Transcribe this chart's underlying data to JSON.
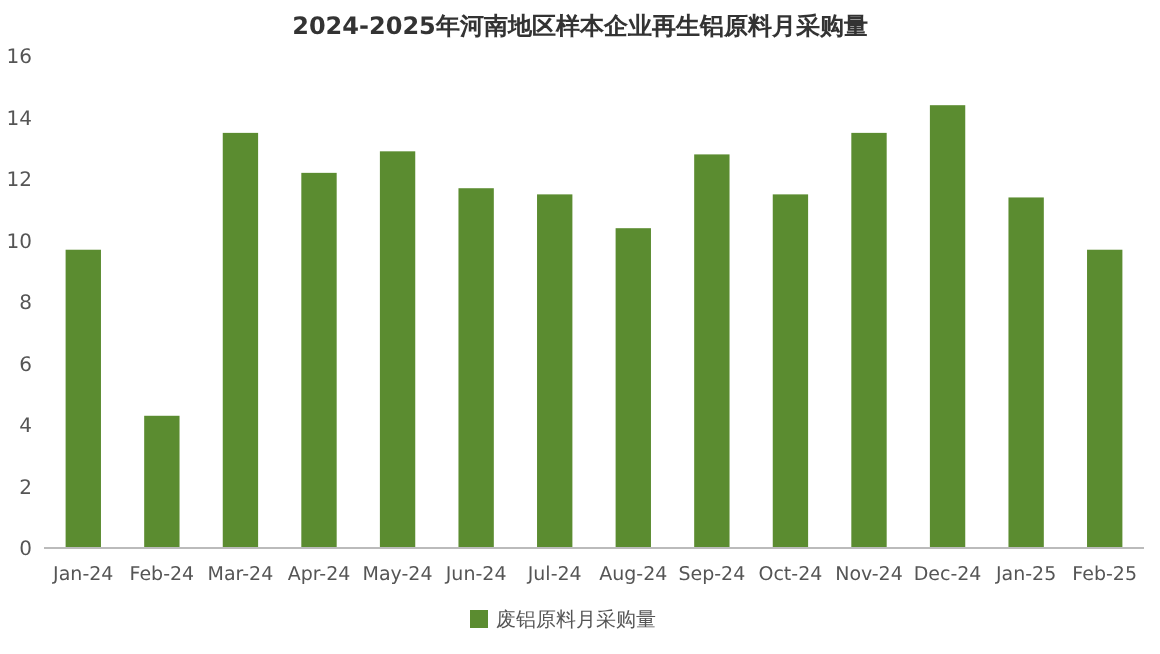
{
  "chart_data": {
    "type": "bar",
    "title": "2024-2025年河南地区样本企业再生铝原料月采购量",
    "categories": [
      "Jan-24",
      "Feb-24",
      "Mar-24",
      "Apr-24",
      "May-24",
      "Jun-24",
      "Jul-24",
      "Aug-24",
      "Sep-24",
      "Oct-24",
      "Nov-24",
      "Dec-24",
      "Jan-25",
      "Feb-25"
    ],
    "series": [
      {
        "name": "废铝原料月采购量",
        "color": "#5b8c30",
        "values": [
          9.7,
          4.3,
          13.5,
          12.2,
          12.9,
          11.7,
          11.5,
          10.4,
          12.8,
          11.5,
          13.5,
          14.4,
          11.4,
          9.7
        ]
      }
    ],
    "ylim": [
      0,
      16
    ],
    "yticks": [
      0,
      2,
      4,
      6,
      8,
      10,
      12,
      14,
      16
    ],
    "legend": "bottom"
  }
}
